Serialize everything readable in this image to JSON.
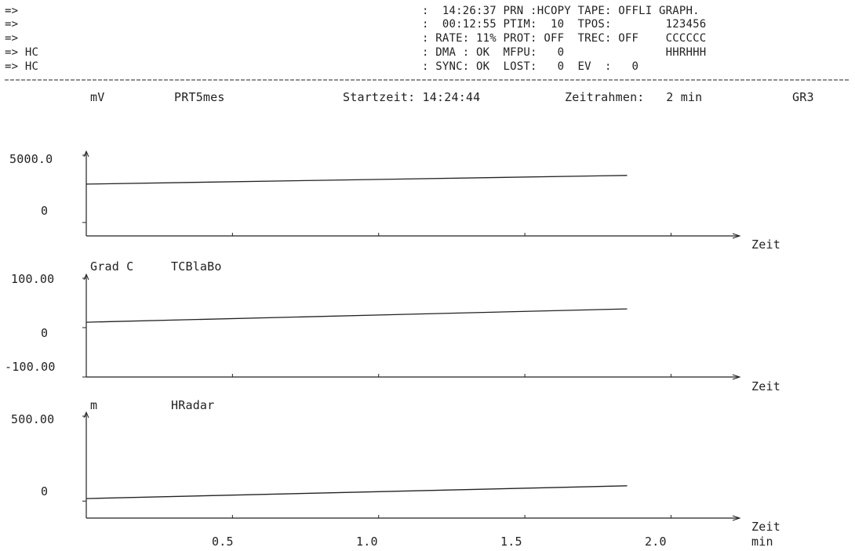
{
  "header": {
    "left_lines": [
      "=>",
      "=>",
      "=>",
      "=> HC",
      "=> HC"
    ],
    "right_lines": [
      ":  14:26:37 PRN :HCOPY TAPE: OFFLI GRAPH.",
      ":  00:12:55 PTIM:  10  TPOS:        123456",
      ": RATE: 11% PROT: OFF  TREC: OFF    CCCCCC",
      ": DMA : OK  MFPU:   0               HHRHHH",
      ": SYNC: OK  LOST:   0  EV  :   0"
    ]
  },
  "top_info": {
    "unit": "mV",
    "channel": "PRT5mes",
    "startzeit": "Startzeit: 14:24:44",
    "zeitrahmen": "Zeitrahmen:   2 min",
    "graph_id": "GR3"
  },
  "x_axis": {
    "ticks": [
      "0.5",
      "1.0",
      "1.5",
      "2.0"
    ],
    "unit": "min",
    "label": "Zeit"
  },
  "colors": {
    "ink": "#222222",
    "background": "#ffffff"
  },
  "chart_data": [
    {
      "type": "line",
      "ylabel": "mV",
      "series": [
        {
          "name": "PRT5mes",
          "x": [
            0.0,
            1.85
          ],
          "y": [
            2850,
            3500
          ]
        }
      ],
      "ylim": [
        -1000,
        5000
      ],
      "xlim": [
        0,
        2.2
      ],
      "ytick_labels": [
        "5000.0",
        "0"
      ],
      "ytick_values": [
        5000,
        0
      ],
      "xlabel": "Zeit"
    },
    {
      "type": "line",
      "ylabel": "Grad C",
      "series": [
        {
          "name": "TCBlaBo",
          "x": [
            0.0,
            1.85
          ],
          "y": [
            11,
            38
          ]
        }
      ],
      "ylim": [
        -100,
        100
      ],
      "xlim": [
        0,
        2.2
      ],
      "ytick_labels": [
        "100.00",
        "0",
        "-100.00"
      ],
      "ytick_values": [
        100,
        0,
        -100
      ],
      "xlabel": "Zeit"
    },
    {
      "type": "line",
      "ylabel": "m",
      "series": [
        {
          "name": "HRadar",
          "x": [
            0.0,
            1.85
          ],
          "y": [
            15,
            90
          ]
        }
      ],
      "ylim": [
        -100,
        500
      ],
      "xlim": [
        0,
        2.2
      ],
      "ytick_labels": [
        "500.00",
        "0"
      ],
      "ytick_values": [
        500,
        0
      ],
      "xlabel": "Zeit"
    }
  ]
}
